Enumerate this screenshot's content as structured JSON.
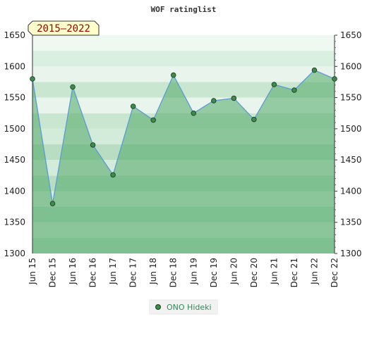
{
  "chart_data": {
    "type": "area",
    "title": "WOF ratinglist",
    "badge": "2015–2022",
    "categories": [
      "Jun 15",
      "Dec 15",
      "Jun 16",
      "Dec 16",
      "Jun 17",
      "Dec 17",
      "Jun 18",
      "Dec 18",
      "Jun 19",
      "Dec 19",
      "Jun 20",
      "Dec 20",
      "Jun 21",
      "Dec 21",
      "Jun 22",
      "Dec 22"
    ],
    "series": [
      {
        "name": "ONO Hideki",
        "values": [
          1580,
          1380,
          1567,
          1474,
          1426,
          1536,
          1514,
          1586,
          1525,
          1545,
          1549,
          1515,
          1571,
          1562,
          1594,
          1580
        ]
      }
    ],
    "ylim": [
      1300,
      1650
    ],
    "yticks": [
      1300,
      1350,
      1400,
      1450,
      1500,
      1550,
      1600,
      1650
    ],
    "grid": true,
    "legend_position": "bottom-center",
    "colors": {
      "area_fill": "#66b27a",
      "line": "#5b9bd5",
      "marker": "#3c8c4c",
      "marker_edge": "#1f3d1f",
      "band_dark": "#8fcfa3",
      "band_light": "#d9efdf",
      "badge_bg": "#ffffcc"
    }
  }
}
